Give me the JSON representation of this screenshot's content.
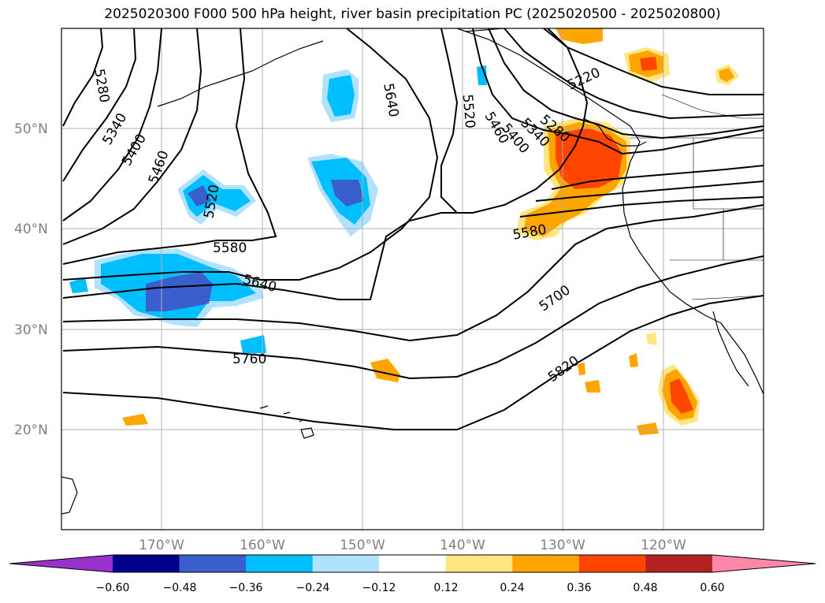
{
  "title": "2025020300 F000 500 hPa height, river basin precipitation PC (2025020500 - 2025020800)",
  "lat_labels": [
    "50°N",
    "40°N",
    "30°N",
    "20°N"
  ],
  "lon_labels": [
    "170°W",
    "160°W",
    "150°W",
    "140°W",
    "130°W",
    "120°W"
  ],
  "contour_labels": [
    "5280",
    "5340",
    "5400",
    "5460",
    "5520",
    "5580",
    "5640",
    "5700",
    "5760",
    "5820",
    "5220",
    "5640",
    "5520",
    "5460",
    "5400",
    "5340",
    "5280",
    "5580"
  ],
  "colorbar": {
    "ticks": [
      "−0.60",
      "−0.48",
      "−0.36",
      "−0.24",
      "−0.12",
      "0.12",
      "0.24",
      "0.36",
      "0.48",
      "0.60"
    ],
    "colors": [
      "#9932cc",
      "#00008b",
      "#3a5fcd",
      "#00bfff",
      "#b0e2ff",
      "#ffffff",
      "#ffe680",
      "#ffa500",
      "#ff4500",
      "#b22222",
      "#ff88aa"
    ]
  }
}
